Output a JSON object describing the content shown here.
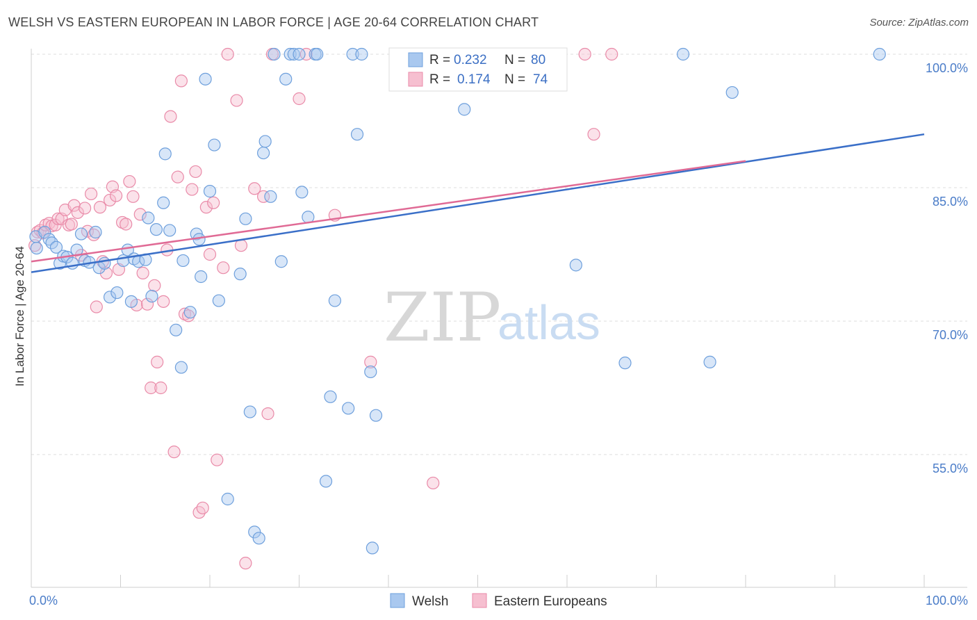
{
  "title": "WELSH VS EASTERN EUROPEAN IN LABOR FORCE | AGE 20-64 CORRELATION CHART",
  "source": "Source: ZipAtlas.com",
  "watermark": {
    "zip": "ZIP",
    "atlas": "atlas"
  },
  "chart_data": {
    "type": "scatter",
    "ylabel": "In Labor Force | Age 20-64",
    "xlabel": "",
    "xlim": [
      0,
      100
    ],
    "ylim": [
      40.5,
      103
    ],
    "y_ticks": [
      {
        "value": 100,
        "label": "100.0%"
      },
      {
        "value": 85,
        "label": "85.0%"
      },
      {
        "value": 70,
        "label": "70.0%"
      },
      {
        "value": 55,
        "label": "55.0%"
      }
    ],
    "x_tick_labels": {
      "left": "0.0%",
      "right": "100.0%"
    },
    "legend": {
      "r_label": "R =",
      "n_label": "N =",
      "entries": [
        {
          "name": "Welsh",
          "r": "0.232",
          "n": "80",
          "color": "#6d9fdc",
          "fill": "#a9c8ef",
          "line": "#3a6fc8"
        },
        {
          "name": "Eastern Europeans",
          "r": "0.174",
          "n": "74",
          "color": "#e98aa8",
          "fill": "#f6bfd0",
          "line": "#e06a95"
        }
      ]
    },
    "series": [
      {
        "name": "Welsh",
        "trend": {
          "x": [
            0,
            100
          ],
          "y": [
            75.5,
            91
          ]
        },
        "points": [
          [
            0.5,
            79.5
          ],
          [
            0.6,
            78.2
          ],
          [
            1.5,
            80
          ],
          [
            2,
            79.2
          ],
          [
            2.3,
            78.8
          ],
          [
            2.8,
            78.3
          ],
          [
            3.2,
            76.5
          ],
          [
            3.6,
            77.3
          ],
          [
            4,
            77.2
          ],
          [
            4.6,
            76.5
          ],
          [
            5.1,
            78
          ],
          [
            5.6,
            79.8
          ],
          [
            6,
            76.8
          ],
          [
            6.5,
            76.6
          ],
          [
            7.2,
            80
          ],
          [
            7.6,
            76
          ],
          [
            8.2,
            76.5
          ],
          [
            8.8,
            72.7
          ],
          [
            9.6,
            73.2
          ],
          [
            10.3,
            76.8
          ],
          [
            10.8,
            78
          ],
          [
            11.2,
            72.2
          ],
          [
            11.5,
            77
          ],
          [
            12,
            76.7
          ],
          [
            12.8,
            76.9
          ],
          [
            13.1,
            81.6
          ],
          [
            13.5,
            72.8
          ],
          [
            14,
            80.3
          ],
          [
            14.8,
            83.3
          ],
          [
            15,
            88.8
          ],
          [
            15.5,
            80.2
          ],
          [
            16.2,
            69
          ],
          [
            16.8,
            64.8
          ],
          [
            17,
            76.8
          ],
          [
            17.8,
            71
          ],
          [
            18.5,
            79.8
          ],
          [
            18.8,
            79.2
          ],
          [
            19,
            75
          ],
          [
            19.5,
            97.2
          ],
          [
            20,
            84.6
          ],
          [
            20.5,
            89.8
          ],
          [
            21,
            72.3
          ],
          [
            22,
            50
          ],
          [
            23.4,
            75.3
          ],
          [
            24,
            81.5
          ],
          [
            24.5,
            59.8
          ],
          [
            25,
            46.3
          ],
          [
            25.5,
            45.6
          ],
          [
            26,
            88.9
          ],
          [
            26.2,
            90.2
          ],
          [
            26.8,
            84
          ],
          [
            27.2,
            100
          ],
          [
            28,
            76.7
          ],
          [
            28.5,
            97.2
          ],
          [
            29,
            100
          ],
          [
            29.4,
            100
          ],
          [
            30,
            100
          ],
          [
            30.3,
            84.5
          ],
          [
            31,
            81.7
          ],
          [
            31.8,
            100
          ],
          [
            32,
            100
          ],
          [
            33,
            52
          ],
          [
            33.5,
            61.5
          ],
          [
            34,
            72.3
          ],
          [
            35.5,
            60.2
          ],
          [
            36,
            100
          ],
          [
            36.5,
            91
          ],
          [
            37,
            100
          ],
          [
            38,
            64.3
          ],
          [
            38.2,
            44.5
          ],
          [
            38.6,
            59.4
          ],
          [
            42,
            100
          ],
          [
            48.5,
            93.8
          ],
          [
            50,
            100
          ],
          [
            61,
            76.3
          ],
          [
            66.5,
            65.3
          ],
          [
            73,
            100
          ],
          [
            76,
            65.4
          ],
          [
            78.5,
            95.7
          ],
          [
            95,
            100
          ]
        ]
      },
      {
        "name": "Eastern Europeans",
        "trend": {
          "x": [
            0,
            80
          ],
          "y": [
            76.7,
            88
          ]
        },
        "points": [
          [
            0.4,
            78.5
          ],
          [
            0.7,
            80
          ],
          [
            1,
            80.2
          ],
          [
            1.3,
            79.9
          ],
          [
            1.6,
            80.8
          ],
          [
            2,
            81
          ],
          [
            2.3,
            80.7
          ],
          [
            2.7,
            80.8
          ],
          [
            3,
            81.5
          ],
          [
            3.4,
            81.5
          ],
          [
            3.8,
            82.5
          ],
          [
            4.2,
            80.8
          ],
          [
            4.5,
            80.9
          ],
          [
            4.8,
            83
          ],
          [
            5.2,
            82.2
          ],
          [
            5.6,
            77.4
          ],
          [
            6,
            82.7
          ],
          [
            6.3,
            80.1
          ],
          [
            6.7,
            84.3
          ],
          [
            7,
            79.7
          ],
          [
            7.3,
            71.6
          ],
          [
            7.7,
            82.8
          ],
          [
            8,
            76.7
          ],
          [
            8.4,
            75.4
          ],
          [
            8.8,
            83.6
          ],
          [
            9.1,
            85.1
          ],
          [
            9.5,
            84.1
          ],
          [
            9.8,
            75.8
          ],
          [
            10.2,
            81.1
          ],
          [
            10.6,
            80.9
          ],
          [
            11,
            85.7
          ],
          [
            11.4,
            84
          ],
          [
            11.8,
            71.8
          ],
          [
            12.2,
            82
          ],
          [
            12.5,
            75.4
          ],
          [
            13,
            71.9
          ],
          [
            13.4,
            62.5
          ],
          [
            13.8,
            74
          ],
          [
            14.1,
            65.4
          ],
          [
            14.5,
            62.5
          ],
          [
            14.8,
            72.2
          ],
          [
            15.2,
            78
          ],
          [
            15.6,
            93
          ],
          [
            16,
            55.3
          ],
          [
            16.4,
            86.2
          ],
          [
            16.8,
            97
          ],
          [
            17.2,
            70.8
          ],
          [
            17.6,
            70.6
          ],
          [
            18,
            84.8
          ],
          [
            18.4,
            86.8
          ],
          [
            18.8,
            48.5
          ],
          [
            19.2,
            49
          ],
          [
            19.6,
            82.8
          ],
          [
            20,
            77.5
          ],
          [
            20.4,
            83.3
          ],
          [
            20.8,
            54.4
          ],
          [
            21.5,
            76
          ],
          [
            22,
            100
          ],
          [
            23,
            94.8
          ],
          [
            23.5,
            78.5
          ],
          [
            24,
            42.8
          ],
          [
            25,
            84.9
          ],
          [
            26,
            84
          ],
          [
            26.5,
            59.6
          ],
          [
            27,
            100
          ],
          [
            30,
            95
          ],
          [
            30.8,
            100
          ],
          [
            34,
            81.9
          ],
          [
            38,
            65.4
          ],
          [
            45,
            51.8
          ],
          [
            50,
            100
          ],
          [
            62,
            100
          ],
          [
            63,
            91
          ],
          [
            65,
            100
          ]
        ]
      }
    ]
  }
}
